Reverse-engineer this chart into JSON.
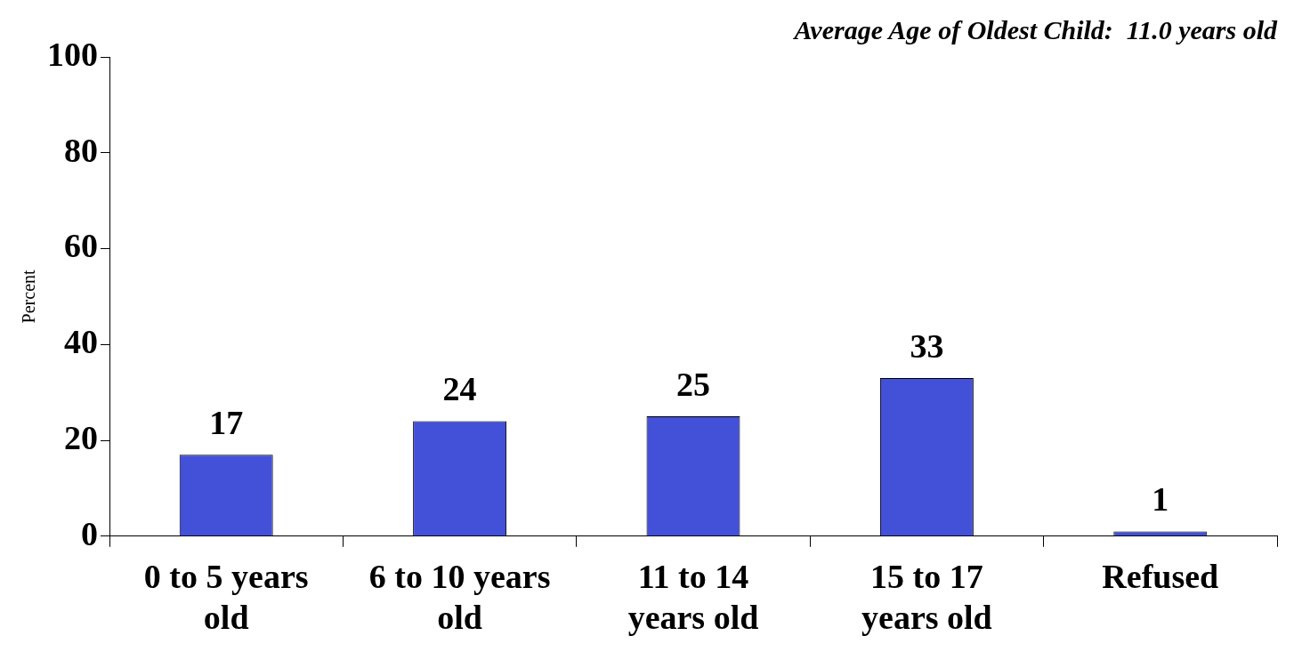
{
  "chart_data": {
    "type": "bar",
    "title": "Average Age of Oldest Child:  11.0 years old",
    "ylabel": "Percent",
    "categories": [
      "0 to 5 years old",
      "6 to 10 years old",
      "11 to 14 years old",
      "15 to 17 years old",
      "Refused"
    ],
    "values": [
      17,
      24,
      25,
      33,
      1
    ],
    "color": "#4350d8",
    "ylim": [
      0,
      100
    ],
    "yticks": [
      0,
      20,
      40,
      60,
      80,
      100
    ],
    "grid": false,
    "legend": false,
    "data_labels": true
  }
}
